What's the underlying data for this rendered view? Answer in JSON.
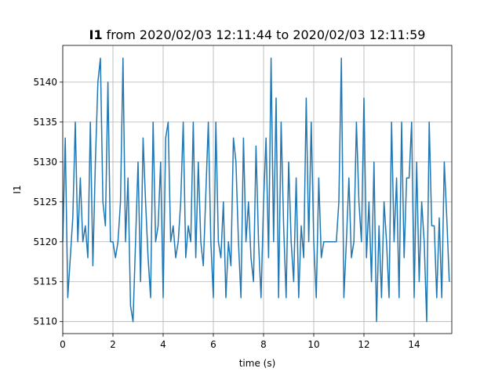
{
  "chart_data": {
    "type": "line",
    "title_name": "I1",
    "title_rest": "from 2020/02/03 12:11:44 to 2020/02/03 12:11:59",
    "xlabel": "time (s)",
    "ylabel": "I1",
    "xlim": [
      0,
      15.5
    ],
    "ylim": [
      5108.5,
      5144.6
    ],
    "xticks": [
      0,
      2,
      4,
      6,
      8,
      10,
      12,
      14
    ],
    "yticks": [
      5110,
      5115,
      5120,
      5125,
      5130,
      5135,
      5140
    ],
    "grid": true,
    "series": [
      {
        "color": "#1f77b4",
        "x": [
          0,
          0.1,
          0.2,
          0.3,
          0.4,
          0.5,
          0.6,
          0.7,
          0.8,
          0.9,
          1,
          1.1,
          1.2,
          1.3,
          1.4,
          1.5,
          1.6,
          1.7,
          1.8,
          1.9,
          2,
          2.1,
          2.2,
          2.3,
          2.4,
          2.5,
          2.6,
          2.7,
          2.8,
          2.9,
          3,
          3.1,
          3.2,
          3.3,
          3.4,
          3.5,
          3.6,
          3.7,
          3.8,
          3.9,
          4,
          4.1,
          4.2,
          4.3,
          4.4,
          4.5,
          4.6,
          4.7,
          4.8,
          4.9,
          5,
          5.1,
          5.2,
          5.3,
          5.4,
          5.5,
          5.6,
          5.7,
          5.8,
          5.9,
          6,
          6.1,
          6.2,
          6.3,
          6.4,
          6.5,
          6.6,
          6.7,
          6.8,
          6.9,
          7,
          7.1,
          7.2,
          7.3,
          7.4,
          7.5,
          7.6,
          7.7,
          7.8,
          7.9,
          8,
          8.1,
          8.2,
          8.3,
          8.4,
          8.5,
          8.6,
          8.7,
          8.8,
          8.9,
          9,
          9.1,
          9.2,
          9.3,
          9.4,
          9.5,
          9.6,
          9.7,
          9.8,
          9.9,
          10,
          10.1,
          10.2,
          10.3,
          10.4,
          10.5,
          10.6,
          10.7,
          10.8,
          10.9,
          11,
          11.1,
          11.2,
          11.3,
          11.4,
          11.5,
          11.6,
          11.7,
          11.8,
          11.9,
          12,
          12.1,
          12.2,
          12.3,
          12.4,
          12.5,
          12.6,
          12.7,
          12.8,
          12.9,
          13,
          13.1,
          13.2,
          13.3,
          13.4,
          13.5,
          13.6,
          13.7,
          13.8,
          13.9,
          14,
          14.1,
          14.2,
          14.3,
          14.4,
          14.5,
          14.6,
          14.7,
          14.8,
          14.9,
          15,
          15.1,
          15.2,
          15.3,
          15.4
        ],
        "values": [
          5120,
          5133,
          5113,
          5118,
          5123,
          5135,
          5120,
          5128,
          5120,
          5122,
          5118,
          5135,
          5117,
          5130,
          5140,
          5143,
          5125,
          5122,
          5140,
          5120,
          5120,
          5118,
          5120,
          5125,
          5143,
          5120,
          5128,
          5112,
          5110,
          5120,
          5130,
          5115,
          5133,
          5125,
          5118,
          5113,
          5135,
          5120,
          5122,
          5130,
          5113,
          5133,
          5135,
          5120,
          5122,
          5118,
          5120,
          5125,
          5135,
          5118,
          5122,
          5120,
          5135,
          5118,
          5130,
          5120,
          5117,
          5126,
          5135,
          5120,
          5113,
          5135,
          5120,
          5118,
          5125,
          5113,
          5120,
          5117,
          5133,
          5130,
          5120,
          5113,
          5133,
          5120,
          5125,
          5118,
          5115,
          5132,
          5120,
          5113,
          5125,
          5133,
          5118,
          5143,
          5120,
          5138,
          5113,
          5135,
          5122,
          5113,
          5130,
          5120,
          5115,
          5128,
          5113,
          5122,
          5118,
          5138,
          5120,
          5135,
          5120,
          5113,
          5128,
          5118,
          5120,
          5120,
          5120,
          5120,
          5120,
          5120,
          5125,
          5143,
          5113,
          5120,
          5128,
          5118,
          5120,
          5135,
          5125,
          5120,
          5138,
          5118,
          5125,
          5115,
          5130,
          5110,
          5122,
          5113,
          5125,
          5120,
          5113,
          5135,
          5120,
          5128,
          5113,
          5135,
          5118,
          5128,
          5128,
          5135,
          5113,
          5130,
          5115,
          5125,
          5120,
          5110,
          5135,
          5122,
          5122,
          5113,
          5123,
          5113,
          5130,
          5123,
          5115
        ]
      }
    ]
  }
}
